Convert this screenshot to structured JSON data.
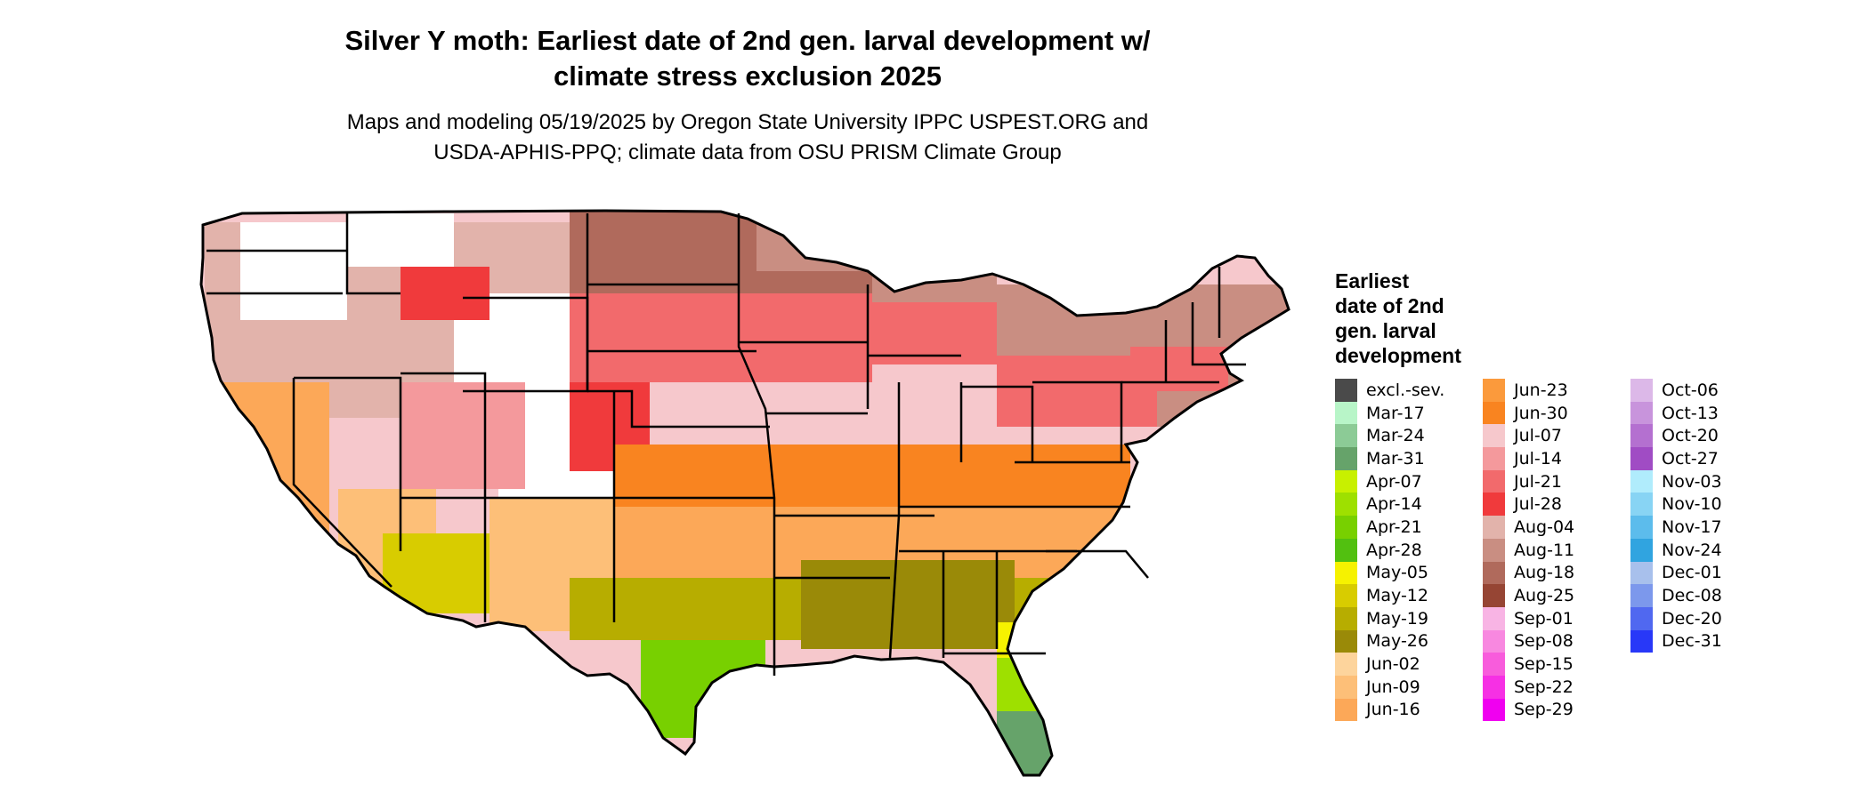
{
  "title_line1": "Silver Y moth: Earliest date of 2nd gen. larval development w/",
  "title_line2": "climate stress exclusion 2025",
  "subtitle_line1": "Maps and modeling 05/19/2025 by Oregon State University IPPC USPEST.ORG and",
  "subtitle_line2": "USDA-APHIS-PPQ; climate data from OSU PRISM Climate Group",
  "legend": {
    "title_lines": [
      "Earliest",
      "date of 2nd",
      "gen. larval",
      "development"
    ],
    "items": [
      {
        "label": "excl.-sev.",
        "color": "#4a4a4a"
      },
      {
        "label": "Mar-17",
        "color": "#b8f5c8"
      },
      {
        "label": "Mar-24",
        "color": "#8ccb96"
      },
      {
        "label": "Mar-31",
        "color": "#66a36a"
      },
      {
        "label": "Apr-07",
        "color": "#c8f000"
      },
      {
        "label": "Apr-14",
        "color": "#9ee000"
      },
      {
        "label": "Apr-21",
        "color": "#78d000"
      },
      {
        "label": "Apr-28",
        "color": "#52c010"
      },
      {
        "label": "May-05",
        "color": "#f6f200"
      },
      {
        "label": "May-12",
        "color": "#d8cc00"
      },
      {
        "label": "May-19",
        "color": "#b7ad00"
      },
      {
        "label": "May-26",
        "color": "#9a8a08"
      },
      {
        "label": "Jun-02",
        "color": "#fdd49c"
      },
      {
        "label": "Jun-09",
        "color": "#fdbf78"
      },
      {
        "label": "Jun-16",
        "color": "#fca858"
      },
      {
        "label": "Jun-23",
        "color": "#fb9a3c"
      },
      {
        "label": "Jun-30",
        "color": "#f98420"
      },
      {
        "label": "Jul-07",
        "color": "#f6c8cc"
      },
      {
        "label": "Jul-14",
        "color": "#f4999c"
      },
      {
        "label": "Jul-21",
        "color": "#f26a6c"
      },
      {
        "label": "Jul-28",
        "color": "#f03a3c"
      },
      {
        "label": "Aug-04",
        "color": "#e2b3ab"
      },
      {
        "label": "Aug-11",
        "color": "#c98e82"
      },
      {
        "label": "Aug-18",
        "color": "#b06a5c"
      },
      {
        "label": "Aug-25",
        "color": "#964534"
      },
      {
        "label": "Sep-01",
        "color": "#f8b4e4"
      },
      {
        "label": "Sep-08",
        "color": "#f888e0"
      },
      {
        "label": "Sep-15",
        "color": "#f85cdc"
      },
      {
        "label": "Sep-22",
        "color": "#f630e4"
      },
      {
        "label": "Sep-29",
        "color": "#f000f0"
      },
      {
        "label": "Oct-06",
        "color": "#dcb8e8"
      },
      {
        "label": "Oct-13",
        "color": "#c894dc"
      },
      {
        "label": "Oct-20",
        "color": "#b470d0"
      },
      {
        "label": "Oct-27",
        "color": "#a04cc4"
      },
      {
        "label": "Nov-03",
        "color": "#b0ecfc"
      },
      {
        "label": "Nov-10",
        "color": "#88d4f4"
      },
      {
        "label": "Nov-17",
        "color": "#5cbcec"
      },
      {
        "label": "Nov-24",
        "color": "#30a4e0"
      },
      {
        "label": "Dec-01",
        "color": "#a8c0ec"
      },
      {
        "label": "Dec-08",
        "color": "#7c98ec"
      },
      {
        "label": "Dec-20",
        "color": "#5068f0"
      },
      {
        "label": "Dec-31",
        "color": "#2838f8"
      }
    ]
  },
  "map_colors": {
    "border": "#000000",
    "unsuitable": "#ffffff"
  }
}
